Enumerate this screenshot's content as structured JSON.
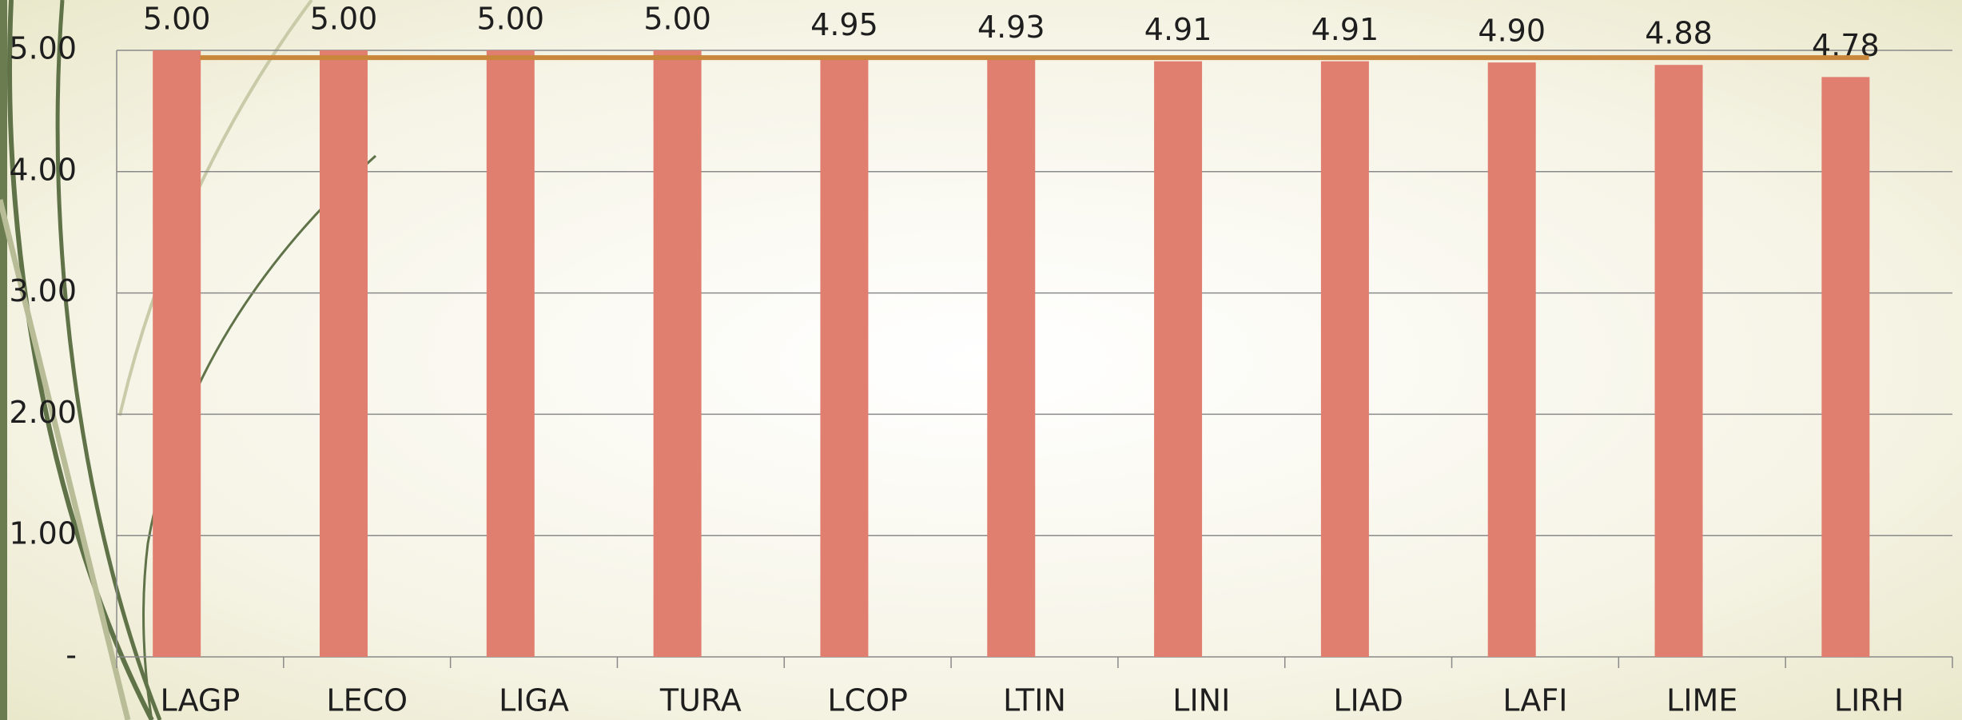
{
  "chart_data": {
    "type": "bar",
    "categories": [
      "LAGP",
      "LECO",
      "LIGA",
      "TURA",
      "LCOP",
      "LTIN",
      "LINI",
      "LIAD",
      "LAFI",
      "LIME",
      "LIRH"
    ],
    "series": [
      {
        "type": "bar",
        "color": "#e07f70",
        "values": [
          5.0,
          5.0,
          5.0,
          5.0,
          4.95,
          4.93,
          4.91,
          4.91,
          4.9,
          4.88,
          4.78
        ],
        "value_labels": [
          "5.00",
          "5.00",
          "5.00",
          "5.00",
          "4.95",
          "4.93",
          "4.91",
          "4.91",
          "4.90",
          "4.88",
          "4.78"
        ]
      },
      {
        "type": "line",
        "color": "#c9873c",
        "values": [
          4.94,
          4.94,
          4.94,
          4.94,
          4.94,
          4.94,
          4.94,
          4.94,
          4.94,
          4.94,
          4.94
        ]
      }
    ],
    "ylim": [
      0,
      5
    ],
    "yticks": [
      {
        "value": 0,
        "label": "-"
      },
      {
        "value": 1,
        "label": "1.00"
      },
      {
        "value": 2,
        "label": "2.00"
      },
      {
        "value": 3,
        "label": "3.00"
      },
      {
        "value": 4,
        "label": "4.00"
      },
      {
        "value": 5,
        "label": "5.00"
      }
    ],
    "grid": true
  }
}
